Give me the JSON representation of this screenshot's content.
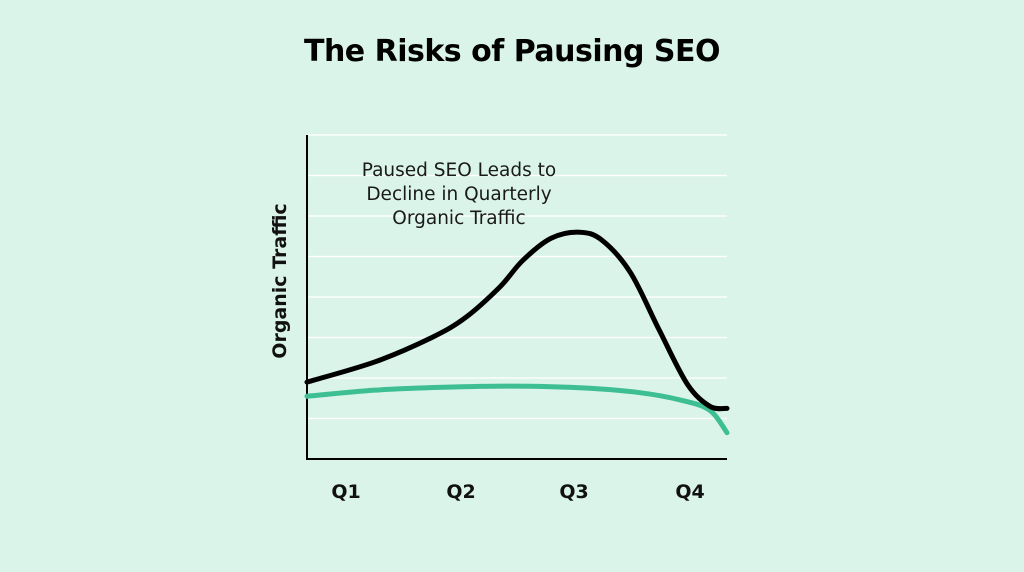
{
  "chart_data": {
    "type": "line",
    "title": "The Risks of Pausing SEO",
    "ylabel": "Organic Traffic",
    "xlabel": "",
    "categories": [
      "Q1",
      "Q2",
      "Q3",
      "Q4"
    ],
    "annotation": [
      "Paused SEO Leads to",
      "Decline in Quarterly",
      "Organic Traffic"
    ],
    "grid": true,
    "ylim": [
      0,
      8
    ],
    "xlim": [
      0.6,
      4.3
    ],
    "series": [
      {
        "color": "#000000",
        "points": [
          [
            0.6,
            1.9
          ],
          [
            1.2,
            2.4
          ],
          [
            1.7,
            3.0
          ],
          [
            2.0,
            3.5
          ],
          [
            2.3,
            4.25
          ],
          [
            2.5,
            4.9
          ],
          [
            2.75,
            5.45
          ],
          [
            3.0,
            5.6
          ],
          [
            3.2,
            5.4
          ],
          [
            3.45,
            4.6
          ],
          [
            3.7,
            3.2
          ],
          [
            3.95,
            1.85
          ],
          [
            4.15,
            1.3
          ],
          [
            4.3,
            1.25
          ]
        ]
      },
      {
        "color": "#3dbf93",
        "points": [
          [
            0.6,
            1.55
          ],
          [
            1.2,
            1.7
          ],
          [
            1.8,
            1.77
          ],
          [
            2.4,
            1.8
          ],
          [
            3.0,
            1.76
          ],
          [
            3.5,
            1.65
          ],
          [
            3.9,
            1.45
          ],
          [
            4.15,
            1.2
          ],
          [
            4.3,
            0.65
          ]
        ]
      }
    ]
  }
}
